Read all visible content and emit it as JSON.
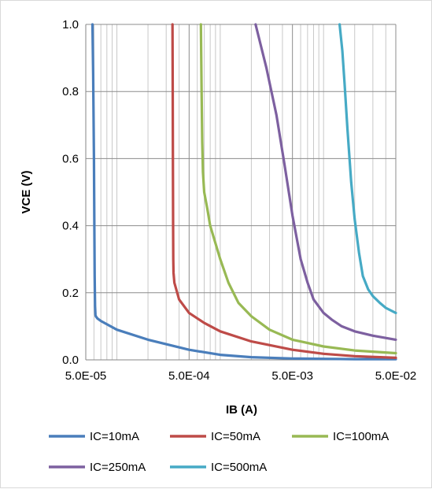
{
  "chart_data": {
    "type": "line",
    "xlabel": "IB (A)",
    "ylabel": "VCE  (V)",
    "xscale": "log",
    "xlim": [
      5e-05,
      0.05
    ],
    "ylim": [
      0,
      1.0
    ],
    "x_ticks": [
      "5.0E-05",
      "5.0E-04",
      "5.0E-03",
      "5.0E-02"
    ],
    "y_ticks": [
      "0.0",
      "0.2",
      "0.4",
      "0.6",
      "0.8",
      "1.0"
    ],
    "grid": "vertical log minor + horizontal major",
    "legend_position": "bottom",
    "series": [
      {
        "name": "IC=10mA",
        "color": "#4a7ebb",
        "x": [
          5.8e-05,
          5.9e-05,
          6e-05,
          6.05e-05,
          6.1e-05,
          6.15e-05,
          6.2e-05,
          6.25e-05,
          6.5e-05,
          7e-05,
          0.0001,
          0.0002,
          0.0005,
          0.001,
          0.002,
          0.005,
          0.01,
          0.02,
          0.05
        ],
        "y": [
          1.0,
          0.85,
          0.6,
          0.4,
          0.25,
          0.16,
          0.135,
          0.13,
          0.123,
          0.116,
          0.09,
          0.06,
          0.03,
          0.015,
          0.008,
          0.004,
          0.003,
          0.002,
          0.002
        ]
      },
      {
        "name": "IC=50mA",
        "color": "#be4b48",
        "x": [
          0.000345,
          0.000347,
          0.000349,
          0.00035,
          0.000351,
          0.000353,
          0.00036,
          0.0004,
          0.0005,
          0.0007,
          0.001,
          0.002,
          0.005,
          0.01,
          0.02,
          0.05
        ],
        "y": [
          1.0,
          0.8,
          0.55,
          0.4,
          0.3,
          0.26,
          0.23,
          0.18,
          0.14,
          0.11,
          0.085,
          0.055,
          0.03,
          0.018,
          0.011,
          0.006
        ]
      },
      {
        "name": "IC=100mA",
        "color": "#98b954",
        "x": [
          0.00065,
          0.00066,
          0.00067,
          0.00068,
          0.0007,
          0.00075,
          0.0008,
          0.001,
          0.0012,
          0.0015,
          0.002,
          0.003,
          0.005,
          0.01,
          0.02,
          0.05
        ],
        "y": [
          1.0,
          0.8,
          0.65,
          0.56,
          0.5,
          0.45,
          0.4,
          0.3,
          0.23,
          0.17,
          0.13,
          0.09,
          0.06,
          0.04,
          0.028,
          0.02
        ]
      },
      {
        "name": "IC=250mA",
        "color": "#7d60a0",
        "x": [
          0.0022,
          0.0028,
          0.0035,
          0.0042,
          0.005,
          0.006,
          0.007,
          0.008,
          0.01,
          0.012,
          0.015,
          0.02,
          0.03,
          0.05
        ],
        "y": [
          1.0,
          0.87,
          0.73,
          0.58,
          0.43,
          0.3,
          0.23,
          0.18,
          0.14,
          0.12,
          0.1,
          0.085,
          0.072,
          0.06
        ]
      },
      {
        "name": "IC=500mA",
        "color": "#46aac5",
        "x": [
          0.0143,
          0.0152,
          0.016,
          0.017,
          0.0185,
          0.02,
          0.022,
          0.024,
          0.027,
          0.03,
          0.035,
          0.04,
          0.05
        ],
        "y": [
          1.0,
          0.92,
          0.82,
          0.69,
          0.53,
          0.42,
          0.32,
          0.25,
          0.21,
          0.19,
          0.17,
          0.155,
          0.14
        ]
      }
    ]
  }
}
